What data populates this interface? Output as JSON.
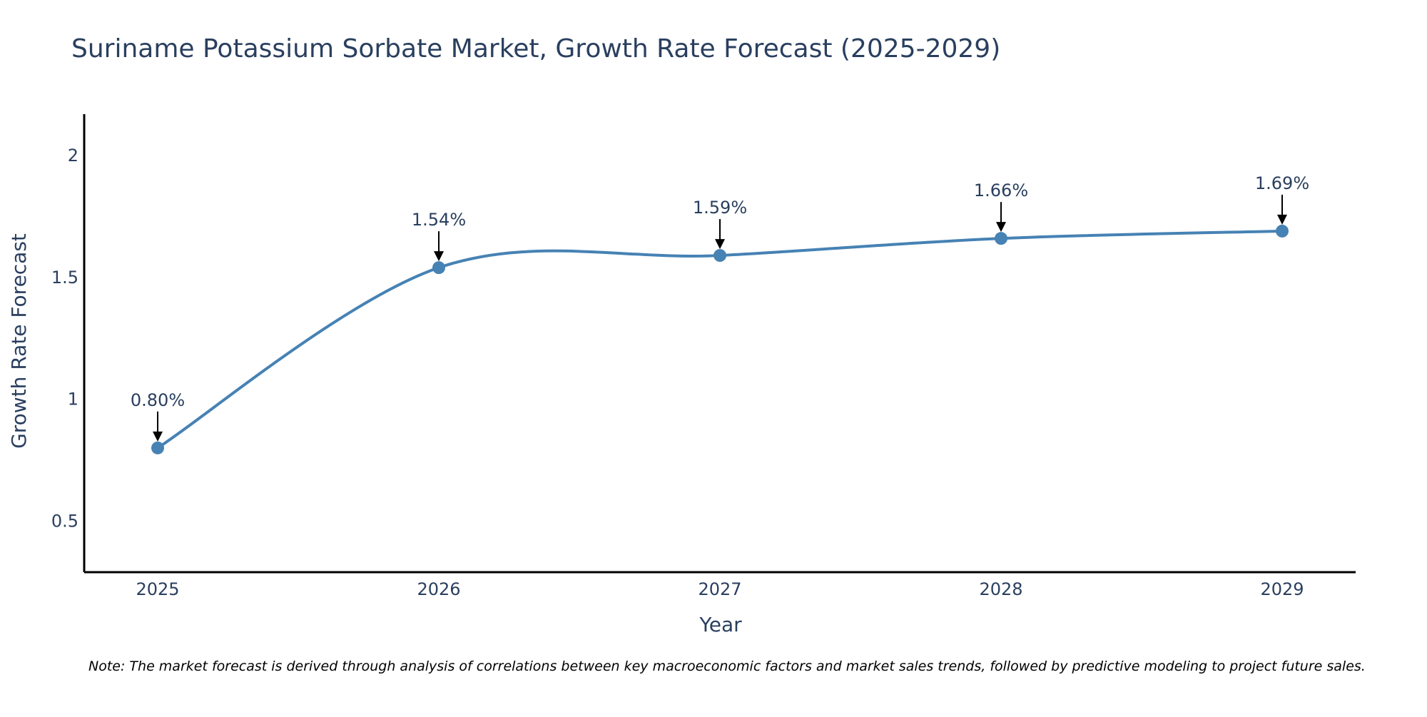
{
  "chart_data": {
    "type": "line",
    "title": "Suriname Potassium Sorbate Market, Growth Rate Forecast (2025-2029)",
    "xlabel": "Year",
    "ylabel": "Growth Rate Forecast",
    "x": [
      "2025",
      "2026",
      "2027",
      "2028",
      "2029"
    ],
    "series": [
      {
        "name": "Growth Rate Forecast",
        "values": [
          0.8,
          1.54,
          1.59,
          1.66,
          1.69
        ]
      }
    ],
    "data_labels": [
      "0.80%",
      "1.54%",
      "1.59%",
      "1.66%",
      "1.69%"
    ],
    "ylim": [
      0.29,
      2.17
    ],
    "yticks": [
      0.5,
      1,
      1.5,
      2
    ],
    "ytick_labels": [
      "0.5",
      "1",
      "1.5",
      "2"
    ],
    "grid": false,
    "line_color": "#4682b4",
    "note": "Note: The market forecast is derived through analysis of correlations between key macroeconomic factors and market sales trends, followed by predictive modeling to project future sales."
  }
}
